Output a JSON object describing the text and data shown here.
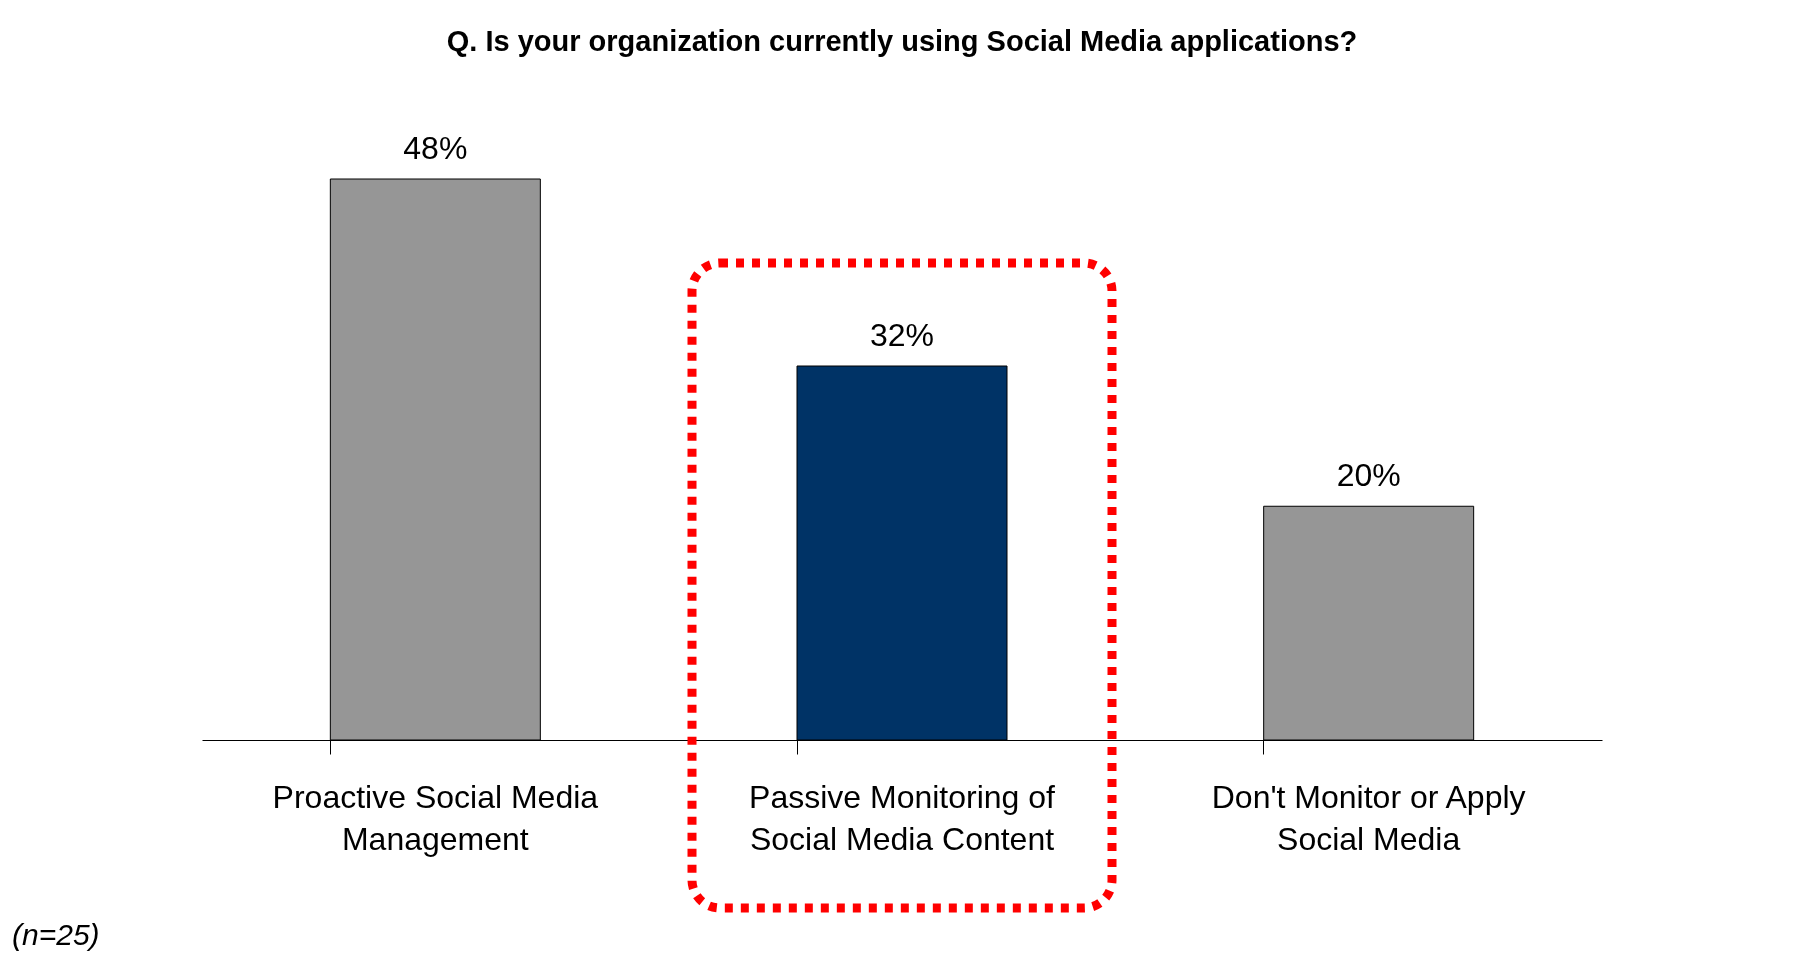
{
  "chart_data": {
    "type": "bar",
    "title": "Q. Is your organization currently using Social Media applications?",
    "categories": [
      "Proactive Social Media Management",
      "Passive Monitoring of Social Media Content",
      "Don't Monitor or Apply Social Media"
    ],
    "values": [
      48,
      32,
      20
    ],
    "colors": [
      "#969696",
      "#003366",
      "#969696"
    ],
    "value_labels": [
      "48%",
      "32%",
      "20%"
    ],
    "annotations": [
      "(n=25)"
    ],
    "grid": false
  }
}
